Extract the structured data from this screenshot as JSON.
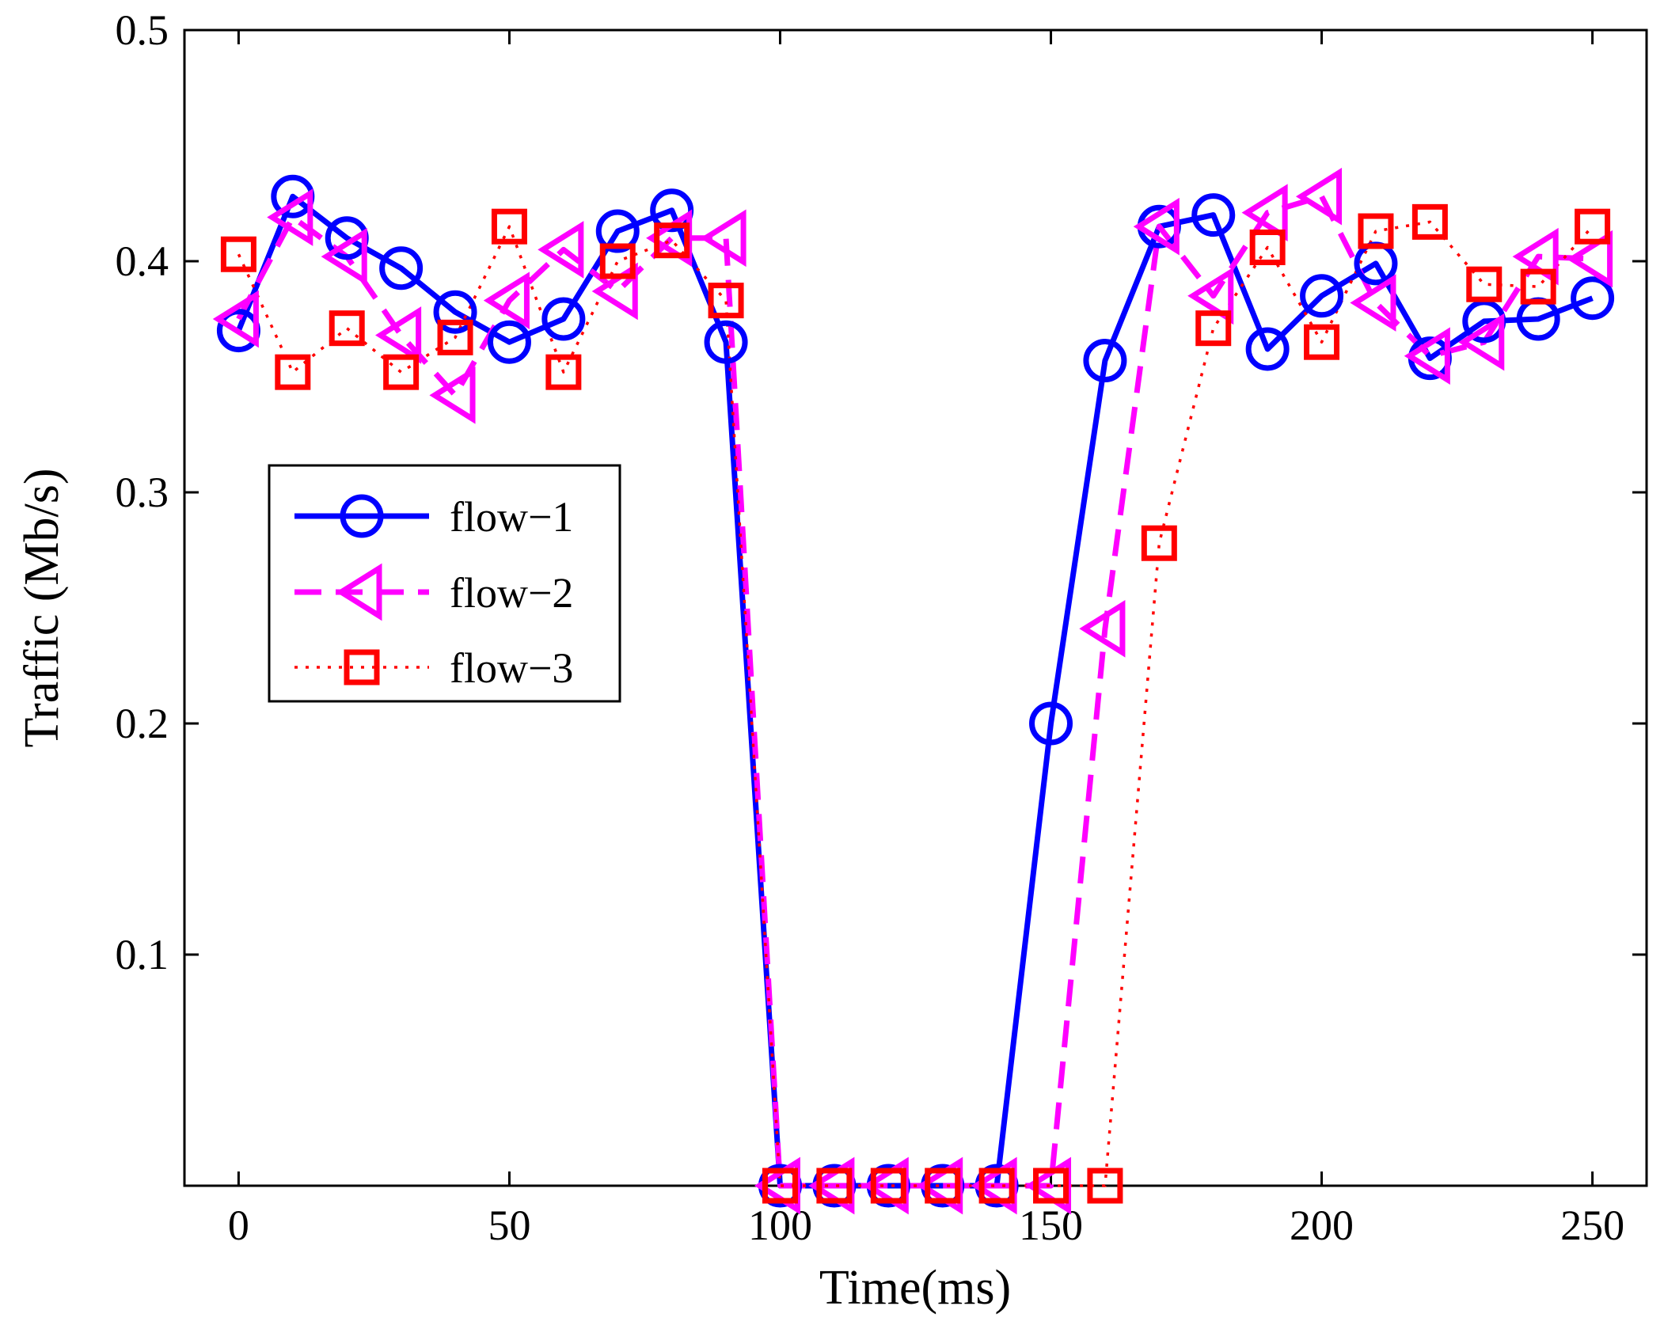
{
  "chart_data": {
    "type": "line",
    "title": "",
    "xlabel": "Time(ms)",
    "ylabel": "Traffic (Mb/s)",
    "xlim": [
      -10,
      260
    ],
    "ylim": [
      0,
      0.5
    ],
    "xticks": [
      0,
      50,
      100,
      150,
      200,
      250
    ],
    "xtick_labels": [
      "0",
      "50",
      "100",
      "150",
      "200",
      "250"
    ],
    "yticks": [
      0.1,
      0.2,
      0.3,
      0.4,
      0.5
    ],
    "ytick_labels": [
      "0.1",
      "0.2",
      "0.3",
      "0.4",
      "0.5"
    ],
    "grid": false,
    "legend_position": "middle-left",
    "x": [
      0,
      10,
      20,
      30,
      40,
      50,
      60,
      70,
      80,
      90,
      100,
      110,
      120,
      130,
      140,
      150,
      160,
      170,
      180,
      190,
      200,
      210,
      220,
      230,
      240,
      250
    ],
    "series": [
      {
        "name": "flow−1",
        "color": "#0000ff",
        "line": "solid",
        "marker": "circle",
        "values": [
          0.37,
          0.428,
          0.41,
          0.397,
          0.378,
          0.365,
          0.375,
          0.413,
          0.422,
          0.365,
          0.0,
          0.0,
          0.0,
          0.0,
          0.0,
          0.2,
          0.357,
          0.415,
          0.42,
          0.362,
          0.385,
          0.399,
          0.358,
          0.374,
          0.375,
          0.384
        ]
      },
      {
        "name": "flow−2",
        "color": "#ff00ff",
        "line": "dashed",
        "marker": "triangle-left",
        "values": [
          0.375,
          0.419,
          0.402,
          0.368,
          0.342,
          0.383,
          0.405,
          0.387,
          0.41,
          0.41,
          0.0,
          0.0,
          0.0,
          0.0,
          0.0,
          0.0,
          0.241,
          0.415,
          0.385,
          0.421,
          0.428,
          0.382,
          0.359,
          0.365,
          0.402,
          0.401
        ]
      },
      {
        "name": "flow−3",
        "color": "#ff0000",
        "line": "dotted",
        "marker": "square",
        "values": [
          0.403,
          0.352,
          0.371,
          0.352,
          0.367,
          0.415,
          0.352,
          0.4,
          0.409,
          0.383,
          0.0,
          0.0,
          0.0,
          0.0,
          0.0,
          0.0,
          0.0,
          0.278,
          0.371,
          0.406,
          0.365,
          0.413,
          0.417,
          0.39,
          0.389,
          0.415
        ]
      }
    ]
  }
}
